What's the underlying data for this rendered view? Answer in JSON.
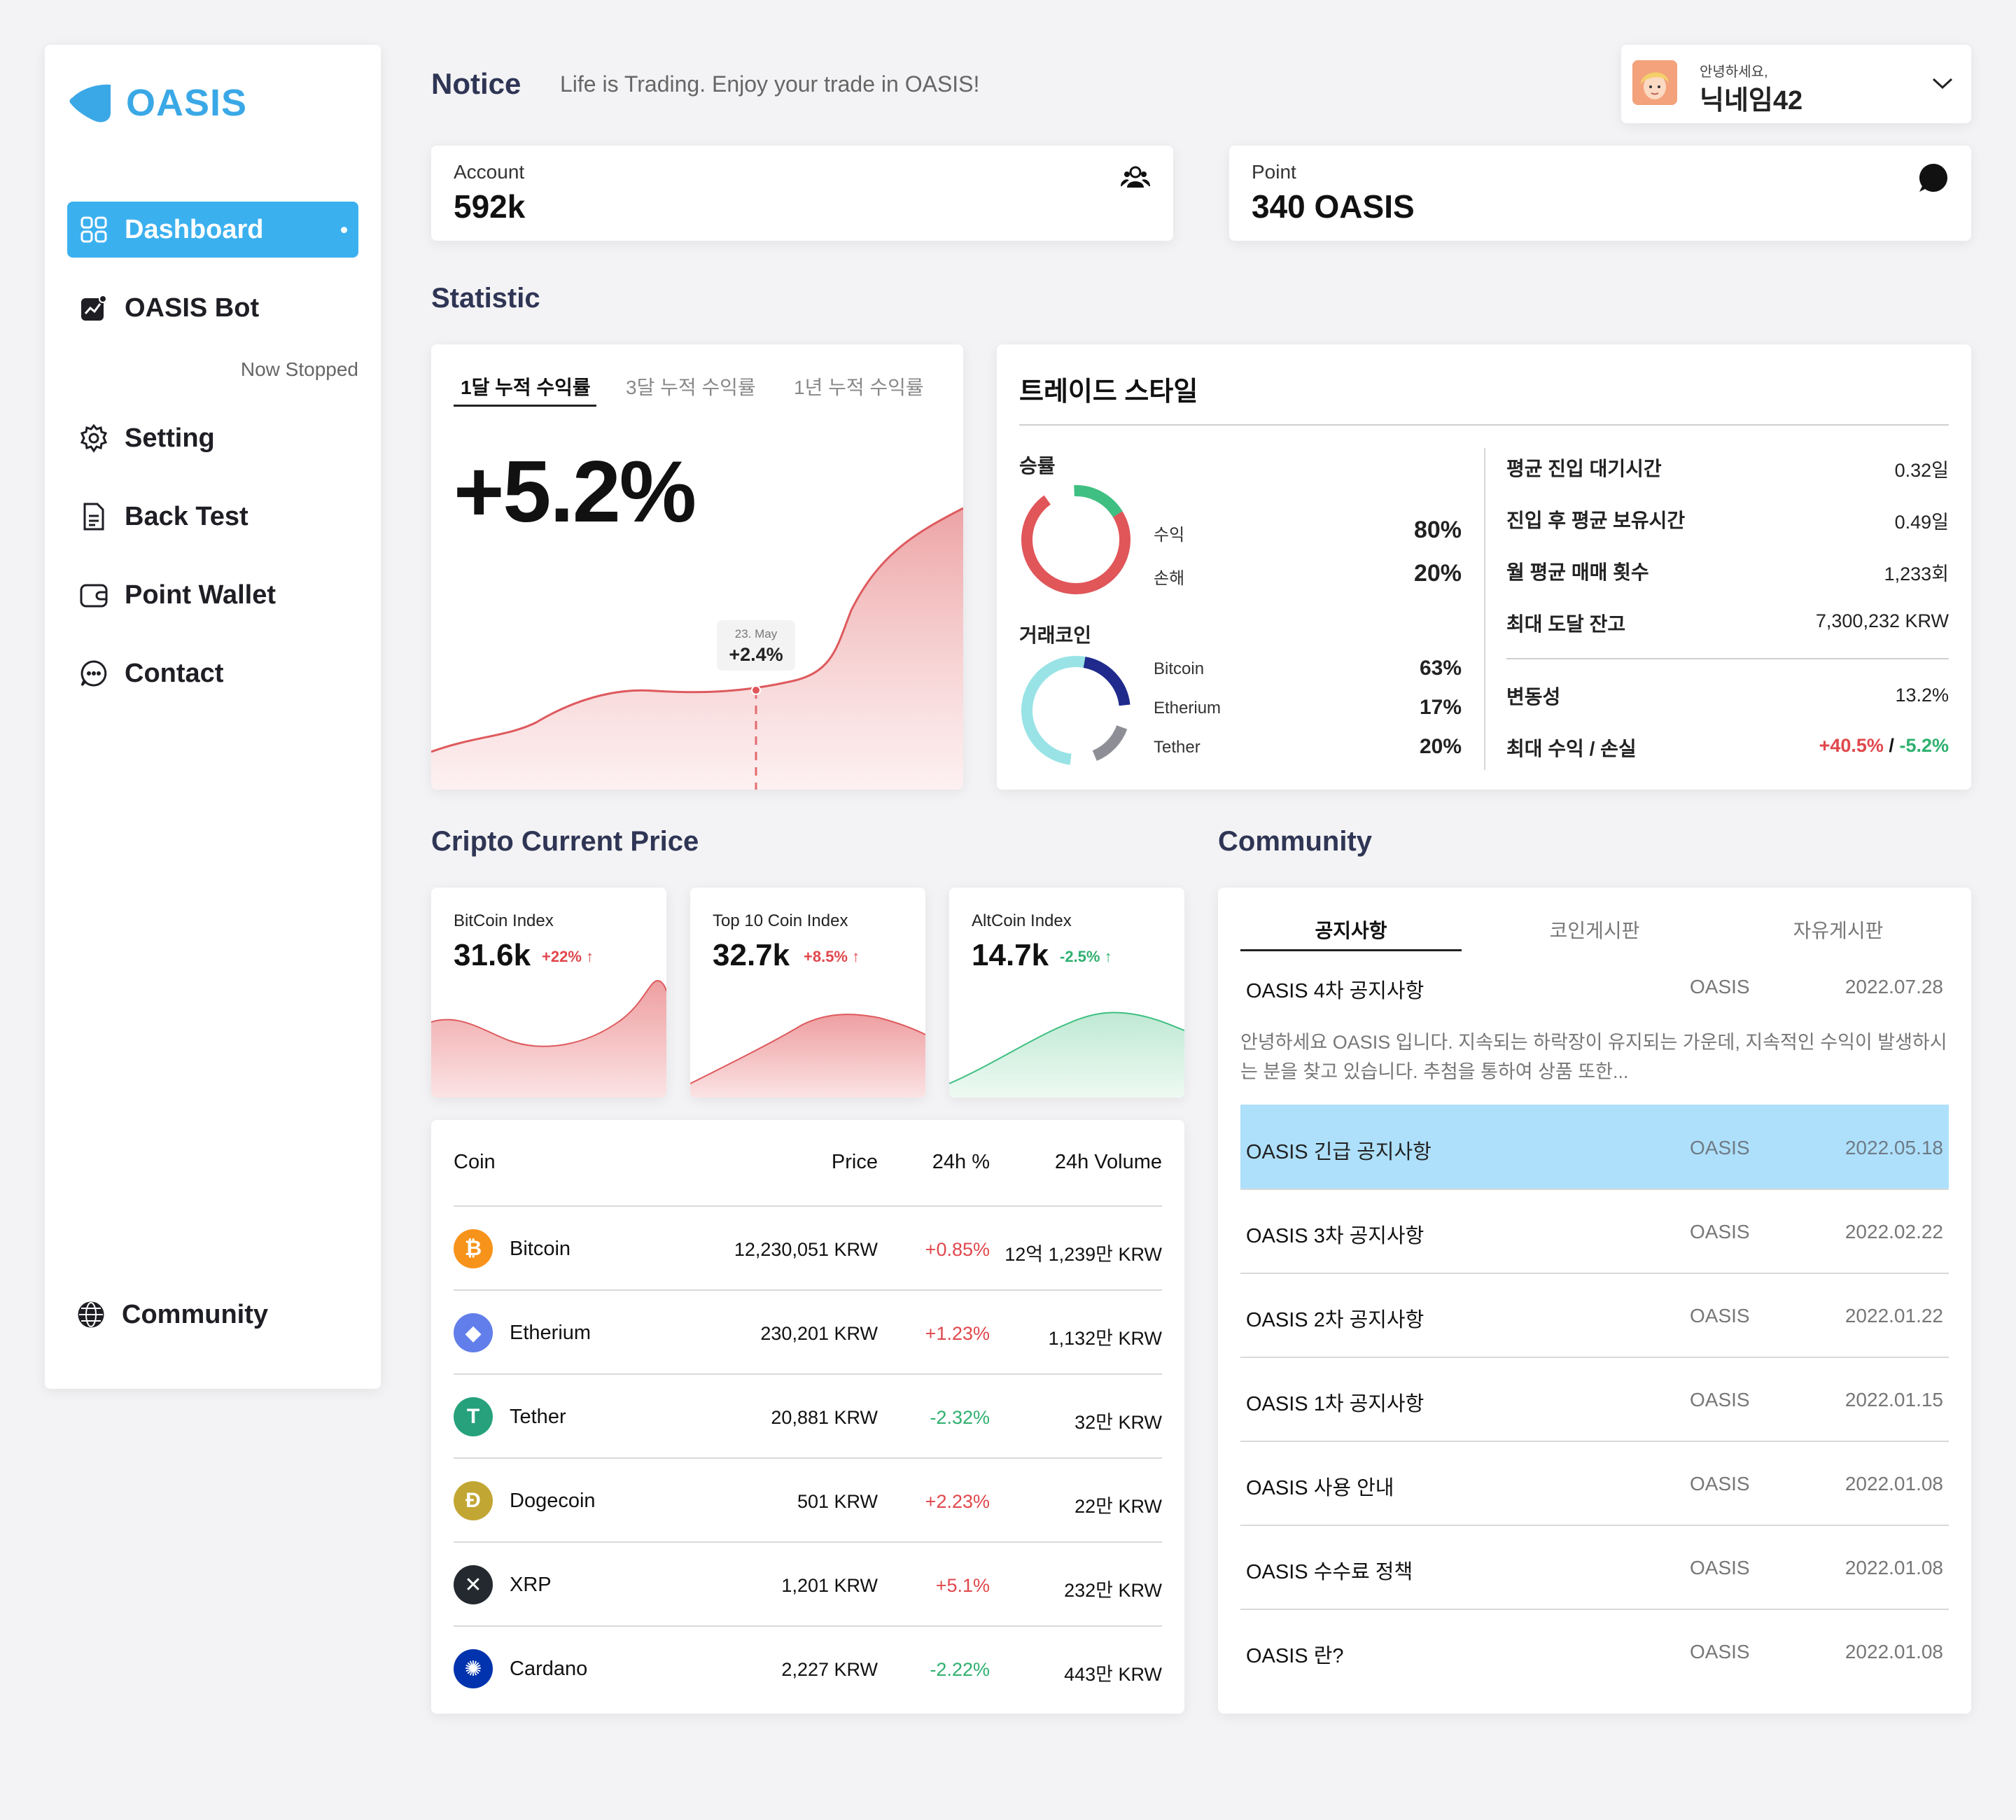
{
  "sidebar": {
    "logo_text": "OASIS",
    "items": [
      {
        "label": "Dashboard",
        "icon": "dashboard-grid-icon"
      },
      {
        "label": "OASIS Bot",
        "icon": "bot-chart-icon"
      },
      {
        "label": "Setting",
        "icon": "gear-icon"
      },
      {
        "label": "Back Test",
        "icon": "document-icon"
      },
      {
        "label": "Point Wallet",
        "icon": "wallet-icon"
      },
      {
        "label": "Contact",
        "icon": "chat-bubble-icon"
      },
      {
        "label": "Community",
        "icon": "globe-icon"
      }
    ],
    "bot_status": "Now Stopped"
  },
  "header": {
    "notice_title": "Notice",
    "notice_text": "Life is Trading. Enjoy your trade in OASIS!",
    "user": {
      "greeting": "안녕하세요,",
      "nickname": "닉네임42"
    }
  },
  "summary": {
    "account": {
      "label": "Account",
      "value": "592k",
      "icon": "users-icon"
    },
    "point": {
      "label": "Point",
      "value": "340 OASIS",
      "icon": "message-icon"
    }
  },
  "statistic": {
    "section_title": "Statistic",
    "tabs": [
      "1달 누적 수익률",
      "3달 누적 수익률",
      "1년 누적 수익률"
    ],
    "value": "+5.2%",
    "tooltip": {
      "date": "23. May",
      "value": "+2.4%"
    }
  },
  "trade_style": {
    "title": "트레이드 스타일",
    "win_rate": {
      "title": "승률",
      "items": [
        {
          "label": "수익",
          "value": "80%",
          "color": "#e05659"
        },
        {
          "label": "손해",
          "value": "20%",
          "color": "#3fbf82"
        }
      ]
    },
    "coins": {
      "title": "거래코인",
      "items": [
        {
          "label": "Bitcoin",
          "value": "63%",
          "color": "#99e3e6"
        },
        {
          "label": "Etherium",
          "value": "17%",
          "color": "#1f2a8c"
        },
        {
          "label": "Tether",
          "value": "20%",
          "color": "#8e8f96"
        }
      ]
    },
    "metrics": [
      {
        "label": "평균 진입 대기시간",
        "value": "0.32일"
      },
      {
        "label": "진입 후 평균 보유시간",
        "value": "0.49일"
      },
      {
        "label": "월 평균 매매 횟수",
        "value": "1,233회"
      },
      {
        "label": "최대 도달 잔고",
        "value": "7,300,232 KRW"
      }
    ],
    "volatility": {
      "label": "변동성",
      "value": "13.2%"
    },
    "max_pl": {
      "label": "최대 수익 / 손실",
      "profit": "+40.5%",
      "sep": "/",
      "loss": "-5.2%"
    }
  },
  "price": {
    "section_title": "Cripto Current Price",
    "indexes": [
      {
        "label": "BitCoin Index",
        "value": "31.6k",
        "change": "+22%",
        "trend": "red"
      },
      {
        "label": "Top 10 Coin Index",
        "value": "32.7k",
        "change": "+8.5%",
        "trend": "red"
      },
      {
        "label": "AltCoin Index",
        "value": "14.7k",
        "change": "-2.5%",
        "trend": "green"
      }
    ],
    "table": {
      "headers": {
        "coin": "Coin",
        "price": "Price",
        "change": "24h %",
        "volume": "24h Volume"
      },
      "rows": [
        {
          "name": "Bitcoin",
          "price": "12,230,051 KRW",
          "change": "+0.85%",
          "volume": "12억 1,239만 KRW",
          "icon": "bitcoin-icon",
          "color": "#f7931a",
          "glyph": "₿"
        },
        {
          "name": "Etherium",
          "price": "230,201 KRW",
          "change": "+1.23%",
          "volume": "1,132만 KRW",
          "icon": "ethereum-icon",
          "color": "#627eea",
          "glyph": "◆"
        },
        {
          "name": "Tether",
          "price": "20,881 KRW",
          "change": "-2.32%",
          "volume": "32만 KRW",
          "icon": "tether-icon",
          "color": "#26a17b",
          "glyph": "T"
        },
        {
          "name": "Dogecoin",
          "price": "501 KRW",
          "change": "+2.23%",
          "volume": "22만 KRW",
          "icon": "dogecoin-icon",
          "color": "#c2a633",
          "glyph": "Ð"
        },
        {
          "name": "XRP",
          "price": "1,201 KRW",
          "change": "+5.1%",
          "volume": "232만 KRW",
          "icon": "xrp-icon",
          "color": "#23292f",
          "glyph": "✕"
        },
        {
          "name": "Cardano",
          "price": "2,227 KRW",
          "change": "-2.22%",
          "volume": "443만 KRW",
          "icon": "cardano-icon",
          "color": "#0033ad",
          "glyph": "✺"
        }
      ]
    }
  },
  "community": {
    "section_title": "Community",
    "tabs": [
      "공지사항",
      "코인게시판",
      "자유게시판"
    ],
    "posts": [
      {
        "title": "OASIS 4차 공지사항",
        "author": "OASIS",
        "date": "2022.07.28"
      },
      {
        "title": "OASIS 긴급 공지사항",
        "author": "OASIS",
        "date": "2022.05.18"
      },
      {
        "title": "OASIS 3차 공지사항",
        "author": "OASIS",
        "date": "2022.02.22"
      },
      {
        "title": "OASIS 2차 공지사항",
        "author": "OASIS",
        "date": "2022.01.22"
      },
      {
        "title": "OASIS 1차 공지사항",
        "author": "OASIS",
        "date": "2022.01.15"
      },
      {
        "title": "OASIS 사용 안내",
        "author": "OASIS",
        "date": "2022.01.08"
      },
      {
        "title": "OASIS 수수료 정책",
        "author": "OASIS",
        "date": "2022.01.08"
      },
      {
        "title": "OASIS 란?",
        "author": "OASIS",
        "date": "2022.01.08"
      }
    ],
    "excerpt": "안녕하세요 OASIS 입니다. 지속되는 하락장이 유지되는 가운데, 지속적인 수익이 발생하시는 분을 찾고 있습니다. 추첨을 통하여 상품 또한..."
  }
}
